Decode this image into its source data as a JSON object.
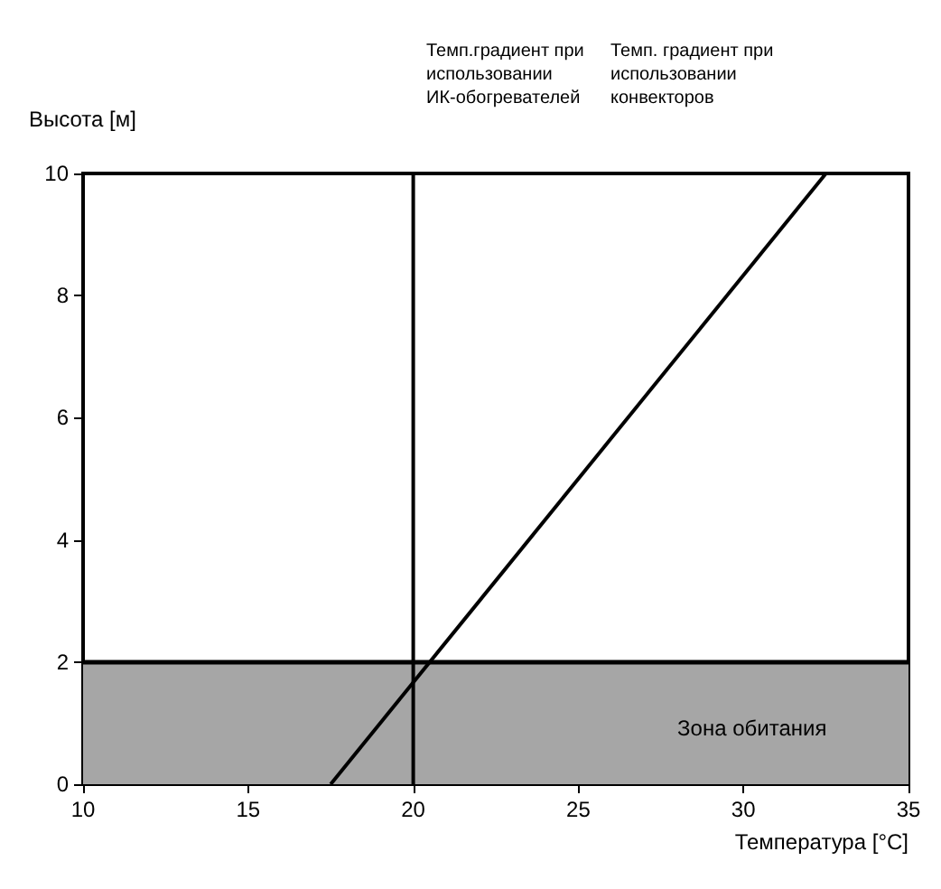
{
  "chart_data": {
    "type": "line",
    "ylabel": "Высота [м]",
    "xlabel": "Температура [°C]",
    "annotations": [
      "Темп.градиент при использовании ИК-обогревателей",
      "Темп. градиент при использовании конвекторов"
    ],
    "series": [
      {
        "x": [
          20,
          20
        ],
        "values": [
          0,
          10
        ],
        "color": "#000000"
      },
      {
        "x": [
          17.5,
          32.5
        ],
        "values": [
          0,
          10
        ],
        "color": "#000000"
      }
    ],
    "ref_lines": [
      {
        "axis": "y",
        "value": 2,
        "color": "#000000"
      }
    ],
    "bands": [
      {
        "axis": "y",
        "from": 0,
        "to": 2,
        "label": "Зона обитания",
        "color": "#a6a6a6"
      }
    ],
    "xlim": [
      10,
      35
    ],
    "xticks": [
      10,
      15,
      20,
      25,
      30,
      35
    ],
    "ylim": [
      0,
      10
    ],
    "yticks": [
      0,
      2,
      4,
      6,
      8,
      10
    ],
    "grid": false,
    "marker": "none",
    "line_style": "solid"
  }
}
